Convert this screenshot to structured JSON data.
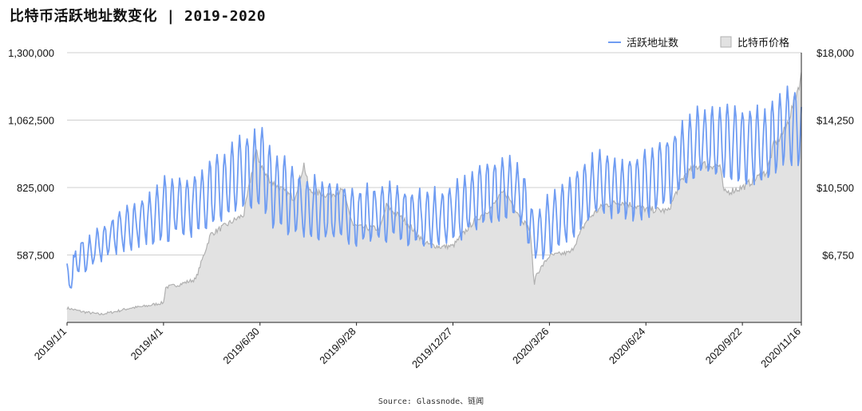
{
  "title": "比特币活跃地址数变化 | 2019-2020",
  "source": "Source: Glassnode、链闻",
  "chart_data": {
    "type": "line+area",
    "legend": {
      "position": "top-right",
      "items": [
        "活跃地址数",
        "比特币价格"
      ]
    },
    "x_tick_labels": [
      "2019/1/1",
      "2019/4/1",
      "2019/6/30",
      "2019/9/28",
      "2019/12/27",
      "2020/3/26",
      "2020/6/24",
      "2020/9/22",
      "2020/11/16"
    ],
    "y_left": {
      "ticks": [
        587500,
        825000,
        1062500,
        1300000
      ],
      "tick_labels": [
        "587,500",
        "825,000",
        "1,062,500",
        "1,300,000"
      ],
      "lim": [
        350000,
        1300000
      ]
    },
    "y_right": {
      "ticks": [
        6750,
        10500,
        14250,
        18000
      ],
      "tick_labels": [
        "$6,750",
        "$10,500",
        "$14,250",
        "$18,000"
      ],
      "lim": [
        3000,
        18000
      ]
    },
    "grid": "horizontal",
    "colors": {
      "active": "#6f9cf2",
      "price_fill": "#e2e2e2",
      "price_line": "#b0b0b0"
    },
    "series": [
      {
        "name": "活跃地址数",
        "axis": "left",
        "dates": [
          "2019-01-01",
          "2019-01-15",
          "2019-02-01",
          "2019-02-15",
          "2019-03-01",
          "2019-03-15",
          "2019-04-01",
          "2019-04-15",
          "2019-05-01",
          "2019-05-15",
          "2019-06-01",
          "2019-06-15",
          "2019-06-30",
          "2019-07-15",
          "2019-08-01",
          "2019-08-15",
          "2019-09-01",
          "2019-09-15",
          "2019-09-28",
          "2019-10-15",
          "2019-11-01",
          "2019-11-15",
          "2019-12-01",
          "2019-12-15",
          "2019-12-27",
          "2020-01-15",
          "2020-02-01",
          "2020-02-15",
          "2020-03-01",
          "2020-03-12",
          "2020-03-26",
          "2020-04-15",
          "2020-05-01",
          "2020-05-15",
          "2020-06-01",
          "2020-06-24",
          "2020-07-15",
          "2020-08-01",
          "2020-08-15",
          "2020-09-01",
          "2020-09-22",
          "2020-10-15",
          "2020-11-01",
          "2020-11-16"
        ],
        "values": [
          540000,
          610000,
          640000,
          680000,
          700000,
          720000,
          760000,
          780000,
          790000,
          830000,
          880000,
          920000,
          930000,
          840000,
          800000,
          780000,
          770000,
          760000,
          740000,
          740000,
          750000,
          730000,
          720000,
          720000,
          730000,
          780000,
          820000,
          840000,
          800000,
          640000,
          700000,
          760000,
          830000,
          850000,
          820000,
          860000,
          900000,
          960000,
          990000,
          990000,
          980000,
          1000000,
          1080000,
          1020000
        ],
        "weekly_high": [
          560000,
          640000,
          680000,
          720000,
          760000,
          780000,
          870000,
          860000,
          880000,
          920000,
          960000,
          1010000,
          1040000,
          960000,
          890000,
          860000,
          850000,
          840000,
          820000,
          830000,
          830000,
          810000,
          810000,
          810000,
          830000,
          880000,
          920000,
          930000,
          890000,
          720000,
          800000,
          860000,
          920000,
          950000,
          910000,
          960000,
          1000000,
          1060000,
          1110000,
          1110000,
          1100000,
          1110000,
          1180000,
          1160000
        ],
        "weekly_low": [
          420000,
          520000,
          550000,
          570000,
          590000,
          610000,
          590000,
          620000,
          620000,
          650000,
          680000,
          710000,
          700000,
          620000,
          620000,
          610000,
          600000,
          600000,
          590000,
          600000,
          610000,
          590000,
          590000,
          590000,
          600000,
          630000,
          660000,
          690000,
          650000,
          540000,
          560000,
          610000,
          680000,
          700000,
          670000,
          680000,
          720000,
          780000,
          820000,
          820000,
          800000,
          790000,
          860000,
          860000
        ]
      },
      {
        "name": "比特币价格",
        "axis": "right",
        "dates": [
          "2019-01-01",
          "2019-01-15",
          "2019-02-01",
          "2019-02-15",
          "2019-03-01",
          "2019-03-15",
          "2019-04-01",
          "2019-04-03",
          "2019-04-15",
          "2019-05-01",
          "2019-05-15",
          "2019-06-01",
          "2019-06-15",
          "2019-06-26",
          "2019-07-05",
          "2019-07-15",
          "2019-08-01",
          "2019-08-10",
          "2019-08-15",
          "2019-09-01",
          "2019-09-15",
          "2019-09-25",
          "2019-10-01",
          "2019-10-20",
          "2019-10-26",
          "2019-11-01",
          "2019-11-15",
          "2019-12-01",
          "2019-12-15",
          "2019-12-27",
          "2020-01-15",
          "2020-02-01",
          "2020-02-13",
          "2020-03-01",
          "2020-03-08",
          "2020-03-12",
          "2020-03-13",
          "2020-03-26",
          "2020-04-15",
          "2020-04-30",
          "2020-05-15",
          "2020-06-01",
          "2020-06-24",
          "2020-07-15",
          "2020-07-27",
          "2020-08-01",
          "2020-08-15",
          "2020-09-01",
          "2020-09-05",
          "2020-09-22",
          "2020-10-15",
          "2020-10-21",
          "2020-11-01",
          "2020-11-10",
          "2020-11-16"
        ],
        "values": [
          3800,
          3600,
          3450,
          3600,
          3800,
          3900,
          4100,
          4950,
          5100,
          5400,
          7900,
          8500,
          9000,
          12500,
          11200,
          10600,
          9900,
          11800,
          10300,
          10100,
          10300,
          8400,
          8300,
          8200,
          9500,
          9200,
          8500,
          7400,
          7200,
          7250,
          8600,
          9400,
          10300,
          8700,
          8100,
          5000,
          5600,
          6700,
          6900,
          8700,
          9500,
          9700,
          9300,
          9200,
          10900,
          11300,
          11800,
          11700,
          10200,
          10500,
          11400,
          12800,
          13700,
          15400,
          16700
        ]
      }
    ]
  }
}
